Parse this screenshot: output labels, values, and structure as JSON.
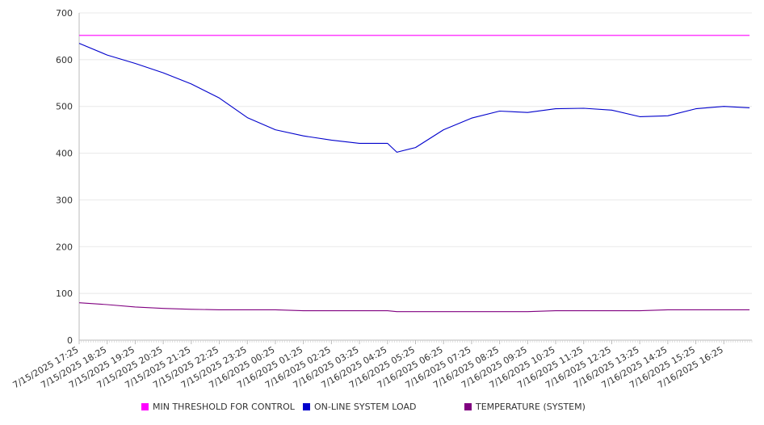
{
  "chart_data": {
    "type": "line",
    "ylim": [
      0,
      700
    ],
    "y_ticks": [
      0,
      100,
      200,
      300,
      400,
      500,
      600,
      700
    ],
    "grid": true,
    "legend_position": "bottom",
    "x_tick_labels": [
      "7/15/2025 17:25",
      "7/15/2025 18:25",
      "7/15/2025 19:25",
      "7/15/2025 20:25",
      "7/15/2025 21:25",
      "7/15/2025 22:25",
      "7/15/2025 23:25",
      "7/16/2025 00:25",
      "7/16/2025 01:25",
      "7/16/2025 02:25",
      "7/16/2025 03:25",
      "7/16/2025 04:25",
      "7/16/2025 05:25",
      "7/16/2025 06:25",
      "7/16/2025 07:25",
      "7/16/2025 08:25",
      "7/16/2025 09:25",
      "7/16/2025 10:25",
      "7/16/2025 11:25",
      "7/16/2025 12:25",
      "7/16/2025 13:25",
      "7/16/2025 14:25",
      "7/16/2025 15:25",
      "7/16/2025 16:25"
    ],
    "x": [
      "7/15/2025 17:25",
      "7/15/2025 18:25",
      "7/15/2025 19:25",
      "7/15/2025 20:25",
      "7/15/2025 21:25",
      "7/15/2025 22:25",
      "7/15/2025 23:25",
      "7/16/2025 00:25",
      "7/16/2025 01:25",
      "7/16/2025 02:25",
      "7/16/2025 03:25",
      "7/16/2025 04:25",
      "7/16/2025 04:45",
      "7/16/2025 05:25",
      "7/16/2025 06:25",
      "7/16/2025 07:25",
      "7/16/2025 08:25",
      "7/16/2025 09:25",
      "7/16/2025 10:25",
      "7/16/2025 11:25",
      "7/16/2025 12:25",
      "7/16/2025 13:25",
      "7/16/2025 14:25",
      "7/16/2025 15:25",
      "7/16/2025 16:25",
      "7/16/2025 17:20"
    ],
    "series": [
      {
        "name": "MIN THRESHOLD FOR CONTROL",
        "color": "#ff00ff",
        "values": [
          652,
          652,
          652,
          652,
          652,
          652,
          652,
          652,
          652,
          652,
          652,
          652,
          652,
          652,
          652,
          652,
          652,
          652,
          652,
          652,
          652,
          652,
          652,
          652,
          652,
          652
        ]
      },
      {
        "name": "ON-LINE SYSTEM LOAD",
        "color": "#0000cc",
        "values": [
          635,
          610,
          592,
          572,
          548,
          518,
          476,
          450,
          437,
          428,
          421,
          421,
          402,
          412,
          450,
          475,
          490,
          487,
          495,
          496,
          492,
          478,
          480,
          495,
          500,
          497
        ]
      },
      {
        "name": "TEMPERATURE (SYSTEM)",
        "color": "#800080",
        "values": [
          80,
          76,
          71,
          68,
          66,
          65,
          65,
          65,
          63,
          63,
          63,
          63,
          61,
          61,
          61,
          61,
          61,
          61,
          63,
          63,
          63,
          63,
          65,
          65,
          65,
          65
        ]
      }
    ]
  }
}
